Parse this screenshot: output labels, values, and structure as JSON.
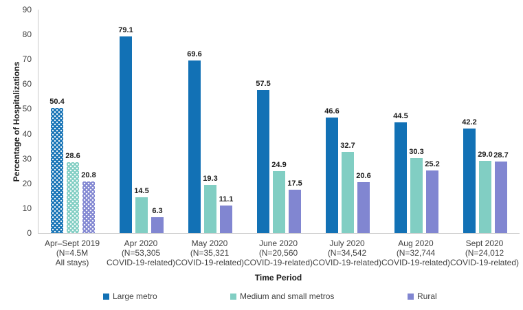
{
  "chart_data": {
    "type": "bar",
    "title": "",
    "xlabel": "Time Period",
    "ylabel": "Percentage of Hospitalizations",
    "ylim": [
      0,
      90
    ],
    "yticks": [
      0,
      10,
      20,
      30,
      40,
      50,
      60,
      70,
      80,
      90
    ],
    "grid": "off",
    "legend_position": "bottom",
    "categories": [
      {
        "lines": [
          "Apr–Sept 2019",
          "(N=4.5M",
          "All stays)"
        ],
        "pattern": "dotted"
      },
      {
        "lines": [
          "Apr 2020",
          "(N=53,305",
          "COVID-19-related)"
        ],
        "pattern": "solid"
      },
      {
        "lines": [
          "May 2020",
          "(N=35,321",
          "COVID-19-related)"
        ],
        "pattern": "solid"
      },
      {
        "lines": [
          "June 2020",
          "(N=20,560",
          "COVID-19-related)"
        ],
        "pattern": "solid"
      },
      {
        "lines": [
          "July 2020",
          "(N=34,542",
          "COVID-19-related)"
        ],
        "pattern": "solid"
      },
      {
        "lines": [
          "Aug 2020",
          "(N=32,744",
          "COVID-19-related)"
        ],
        "pattern": "solid"
      },
      {
        "lines": [
          "Sept 2020",
          "(N=24,012",
          "COVID-19-related)"
        ],
        "pattern": "solid"
      }
    ],
    "series": [
      {
        "name": "Large metro",
        "color": "#1271B5",
        "values": [
          50.4,
          79.1,
          69.6,
          57.5,
          46.6,
          44.5,
          42.2
        ]
      },
      {
        "name": "Medium and small metros",
        "color": "#81CEC3",
        "values": [
          28.6,
          14.5,
          19.3,
          24.9,
          32.7,
          30.3,
          29.0
        ]
      },
      {
        "name": "Rural",
        "color": "#8186D1",
        "values": [
          20.8,
          6.3,
          11.1,
          17.5,
          20.6,
          25.2,
          28.7
        ]
      }
    ]
  }
}
